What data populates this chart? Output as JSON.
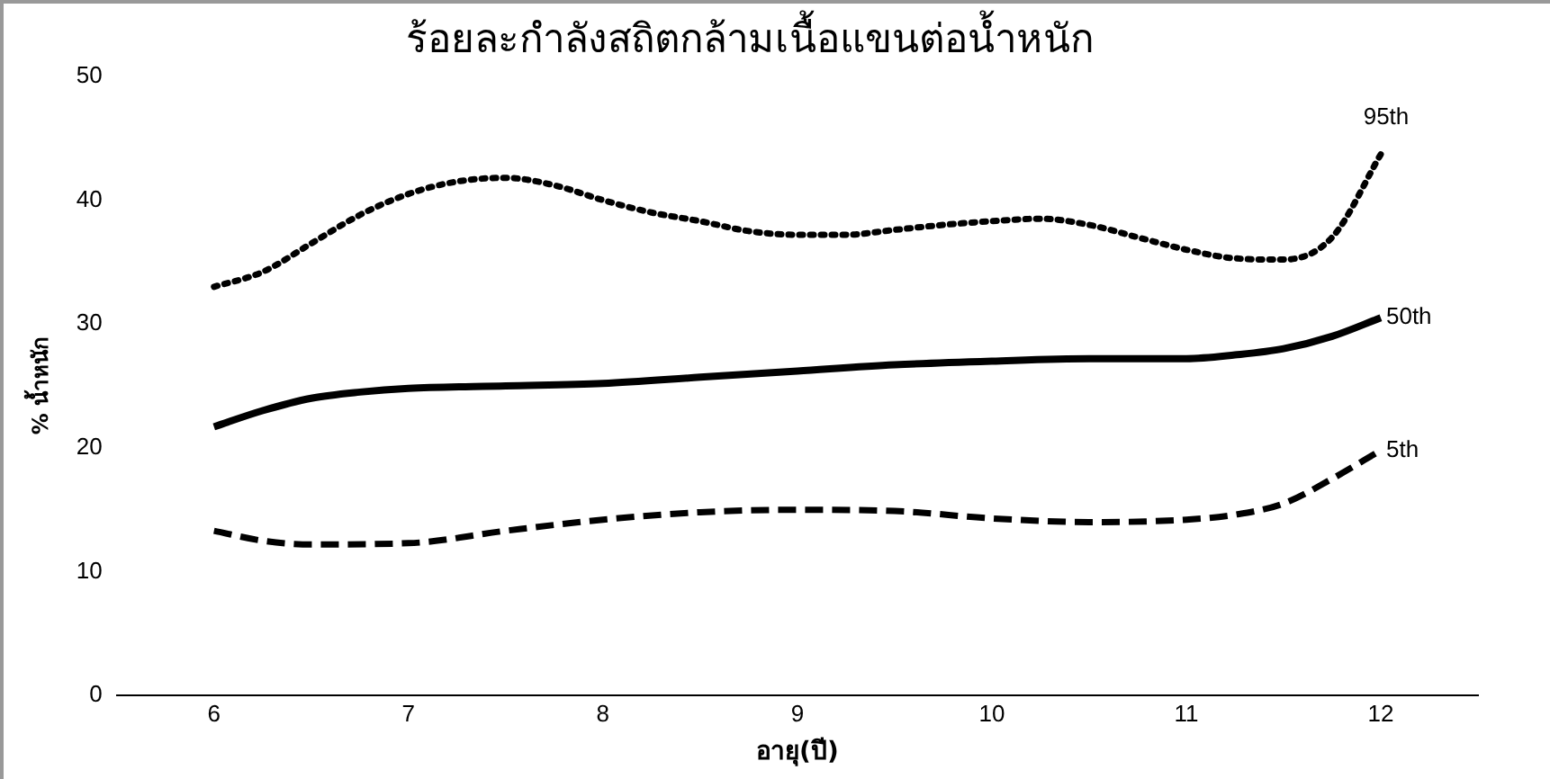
{
  "chart_data": {
    "type": "line",
    "title": "ร้อยละกำลังสถิตกล้ามเนื้อแขนต่อน้ำหนัก",
    "xlabel": "อายุ(ปี)",
    "ylabel": "% น้ำหนัก",
    "xlim": [
      5.5,
      12.5
    ],
    "xticks": [
      6,
      7,
      8,
      9,
      10,
      11,
      12
    ],
    "ylim": [
      0,
      50
    ],
    "yticks": [
      0,
      10,
      20,
      30,
      40,
      50
    ],
    "grid": false,
    "legend": false,
    "marker": "none",
    "series": [
      {
        "name": "95th",
        "color": "#000000",
        "line_style": "dotted",
        "x": [
          6,
          6.25,
          6.5,
          6.75,
          7,
          7.25,
          7.5,
          7.75,
          8,
          8.25,
          8.5,
          8.75,
          9,
          9.25,
          9.5,
          9.75,
          10,
          10.25,
          10.5,
          10.75,
          11,
          11.25,
          11.5,
          11.75,
          12
        ],
        "values": [
          33,
          34.2,
          36.5,
          38.8,
          40.5,
          41.5,
          41.8,
          41.2,
          40,
          39,
          38.3,
          37.5,
          37.2,
          37.2,
          37.6,
          38,
          38.3,
          38.5,
          38,
          37,
          36,
          35.3,
          35.2,
          37,
          43.7
        ]
      },
      {
        "name": "50th",
        "color": "#000000",
        "line_style": "solid",
        "x": [
          6,
          6.25,
          6.5,
          6.75,
          7,
          7.5,
          8,
          8.5,
          9,
          9.5,
          10,
          10.5,
          11,
          11.25,
          11.5,
          11.75,
          12
        ],
        "values": [
          21.7,
          23,
          24,
          24.5,
          24.8,
          25,
          25.2,
          25.7,
          26.2,
          26.7,
          27,
          27.2,
          27.2,
          27.5,
          28,
          29,
          30.5
        ]
      },
      {
        "name": "5th",
        "color": "#000000",
        "line_style": "dashed",
        "x": [
          6,
          6.25,
          6.5,
          7,
          7.5,
          8,
          8.5,
          9,
          9.5,
          10,
          10.5,
          11,
          11.25,
          11.5,
          11.75,
          12
        ],
        "values": [
          13.3,
          12.5,
          12.2,
          12.3,
          13.3,
          14.2,
          14.8,
          15,
          14.9,
          14.3,
          14,
          14.2,
          14.6,
          15.5,
          17.5,
          19.8
        ]
      }
    ]
  }
}
